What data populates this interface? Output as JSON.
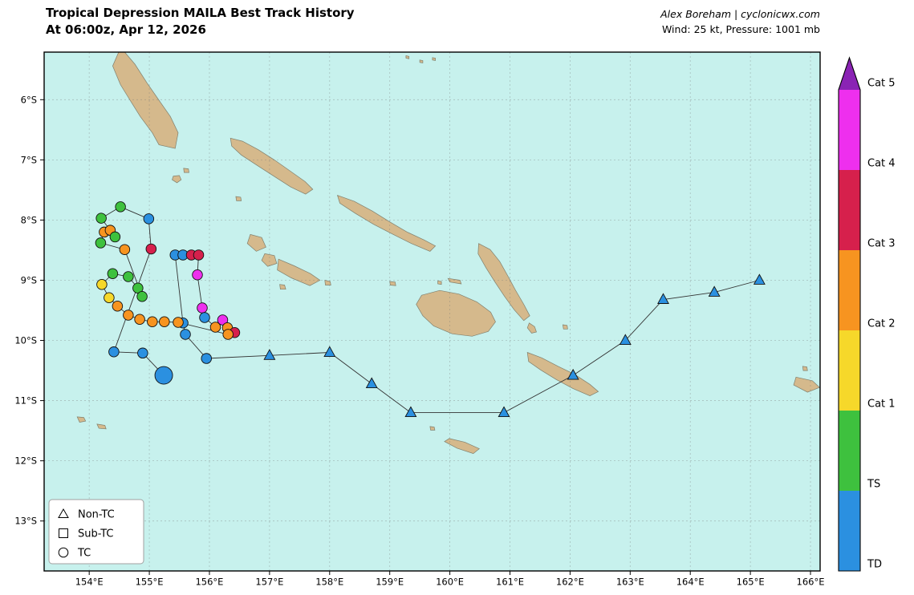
{
  "header": {
    "title_line1": "Tropical Depression MAILA Best Track History",
    "title_line2": "At 06:00z, Apr 12, 2026",
    "credit_line1": "Alex Boreham | cyclonicwx.com",
    "credit_line2": "Wind: 25 kt, Pressure: 1001 mb"
  },
  "colors": {
    "ocean": "#c7f1ed",
    "land": "#d5b98c",
    "land_edge": "#80806e",
    "track_line": "#333333",
    "grid": "#777777",
    "frame": "#000000"
  },
  "chart_data": {
    "type": "scatter",
    "title": "Tropical Depression MAILA Best Track History",
    "subtitle": "At 06:00z, Apr 12, 2026",
    "x_axis": {
      "range": [
        153.25,
        166.16
      ],
      "tick_values": [
        154,
        155,
        156,
        157,
        158,
        159,
        160,
        161,
        162,
        163,
        164,
        165,
        166
      ],
      "tick_labels": [
        "154°E",
        "155°E",
        "156°E",
        "157°E",
        "158°E",
        "159°E",
        "160°E",
        "161°E",
        "162°E",
        "163°E",
        "164°E",
        "165°E",
        "166°E"
      ]
    },
    "y_axis": {
      "range": [
        5.21,
        13.83
      ],
      "tick_values": [
        6,
        7,
        8,
        9,
        10,
        11,
        12,
        13
      ],
      "tick_labels": [
        "6°S",
        "7°S",
        "8°S",
        "9°S",
        "10°S",
        "11°S",
        "12°S",
        "13°S"
      ]
    },
    "category_colors": {
      "TD": "#2b90e0",
      "TS": "#3ec13e",
      "C1": "#f6d82a",
      "C2": "#f79420",
      "C3": "#d6204c",
      "C4": "#ee2fee",
      "C5": "#8a23b4"
    },
    "colorbar": {
      "labels": [
        "TD",
        "TS",
        "Cat 1",
        "Cat 2",
        "Cat 3",
        "Cat 4",
        "Cat 5"
      ],
      "segment_cats": [
        "TD",
        "TS",
        "C1",
        "C2",
        "C3",
        "C4"
      ],
      "arrow_cat": "C5"
    },
    "legend": [
      {
        "marker": "triangle",
        "label": "Non-TC"
      },
      {
        "marker": "square",
        "label": "Sub-TC"
      },
      {
        "marker": "circle",
        "label": "TC"
      }
    ],
    "current": {
      "wind_kt": 25,
      "pressure_mb": 1001
    },
    "track": [
      {
        "lon": 165.15,
        "lat": 9.0,
        "cat": "TD",
        "marker": "triangle"
      },
      {
        "lon": 164.4,
        "lat": 9.2,
        "cat": "TD",
        "marker": "triangle"
      },
      {
        "lon": 163.55,
        "lat": 9.32,
        "cat": "TD",
        "marker": "triangle"
      },
      {
        "lon": 162.92,
        "lat": 10.0,
        "cat": "TD",
        "marker": "triangle"
      },
      {
        "lon": 162.05,
        "lat": 10.58,
        "cat": "TD",
        "marker": "triangle"
      },
      {
        "lon": 160.9,
        "lat": 11.2,
        "cat": "TD",
        "marker": "triangle"
      },
      {
        "lon": 159.35,
        "lat": 11.2,
        "cat": "TD",
        "marker": "triangle"
      },
      {
        "lon": 158.7,
        "lat": 10.72,
        "cat": "TD",
        "marker": "triangle"
      },
      {
        "lon": 158.0,
        "lat": 10.2,
        "cat": "TD",
        "marker": "triangle"
      },
      {
        "lon": 157.0,
        "lat": 10.25,
        "cat": "TD",
        "marker": "triangle"
      },
      {
        "lon": 155.95,
        "lat": 10.3,
        "cat": "TD",
        "marker": "circle"
      },
      {
        "lon": 155.6,
        "lat": 9.9,
        "cat": "TD",
        "marker": "circle"
      },
      {
        "lon": 155.56,
        "lat": 9.71,
        "cat": "TD",
        "marker": "circle"
      },
      {
        "lon": 155.43,
        "lat": 8.58,
        "cat": "TD",
        "marker": "circle"
      },
      {
        "lon": 155.56,
        "lat": 8.58,
        "cat": "TD",
        "marker": "circle"
      },
      {
        "lon": 155.7,
        "lat": 8.58,
        "cat": "C3",
        "marker": "circle"
      },
      {
        "lon": 155.82,
        "lat": 8.58,
        "cat": "C3",
        "marker": "circle"
      },
      {
        "lon": 155.8,
        "lat": 8.91,
        "cat": "C4",
        "marker": "circle"
      },
      {
        "lon": 155.88,
        "lat": 9.46,
        "cat": "C4",
        "marker": "circle"
      },
      {
        "lon": 155.92,
        "lat": 9.62,
        "cat": "TD",
        "marker": "circle"
      },
      {
        "lon": 156.1,
        "lat": 9.78,
        "cat": "C2",
        "marker": "circle"
      },
      {
        "lon": 156.22,
        "lat": 9.66,
        "cat": "C4",
        "marker": "circle"
      },
      {
        "lon": 156.3,
        "lat": 9.79,
        "cat": "C2",
        "marker": "circle"
      },
      {
        "lon": 156.42,
        "lat": 9.87,
        "cat": "C3",
        "marker": "circle"
      },
      {
        "lon": 156.31,
        "lat": 9.9,
        "cat": "C2",
        "marker": "circle"
      },
      {
        "lon": 155.48,
        "lat": 9.7,
        "cat": "C2",
        "marker": "circle"
      },
      {
        "lon": 155.25,
        "lat": 9.69,
        "cat": "C2",
        "marker": "circle"
      },
      {
        "lon": 155.05,
        "lat": 9.69,
        "cat": "C2",
        "marker": "circle"
      },
      {
        "lon": 154.84,
        "lat": 9.65,
        "cat": "C2",
        "marker": "circle"
      },
      {
        "lon": 154.65,
        "lat": 9.58,
        "cat": "C2",
        "marker": "circle"
      },
      {
        "lon": 154.47,
        "lat": 9.43,
        "cat": "C2",
        "marker": "circle"
      },
      {
        "lon": 154.33,
        "lat": 9.29,
        "cat": "C1",
        "marker": "circle"
      },
      {
        "lon": 154.21,
        "lat": 9.07,
        "cat": "C1",
        "marker": "circle"
      },
      {
        "lon": 154.39,
        "lat": 8.89,
        "cat": "TS",
        "marker": "circle"
      },
      {
        "lon": 154.65,
        "lat": 8.94,
        "cat": "TS",
        "marker": "circle"
      },
      {
        "lon": 154.81,
        "lat": 9.13,
        "cat": "TS",
        "marker": "circle"
      },
      {
        "lon": 154.88,
        "lat": 9.27,
        "cat": "TS",
        "marker": "circle"
      },
      {
        "lon": 154.59,
        "lat": 8.49,
        "cat": "C2",
        "marker": "circle"
      },
      {
        "lon": 154.19,
        "lat": 8.38,
        "cat": "TS",
        "marker": "circle"
      },
      {
        "lon": 154.25,
        "lat": 8.2,
        "cat": "C2",
        "marker": "circle"
      },
      {
        "lon": 154.35,
        "lat": 8.17,
        "cat": "C2",
        "marker": "circle"
      },
      {
        "lon": 154.43,
        "lat": 8.28,
        "cat": "TS",
        "marker": "circle"
      },
      {
        "lon": 154.2,
        "lat": 7.97,
        "cat": "TS",
        "marker": "circle"
      },
      {
        "lon": 154.52,
        "lat": 7.78,
        "cat": "TS",
        "marker": "circle"
      },
      {
        "lon": 154.99,
        "lat": 7.98,
        "cat": "TD",
        "marker": "circle"
      },
      {
        "lon": 155.03,
        "lat": 8.48,
        "cat": "C3",
        "marker": "circle"
      },
      {
        "lon": 154.41,
        "lat": 10.19,
        "cat": "TD",
        "marker": "circle"
      },
      {
        "lon": 154.89,
        "lat": 10.21,
        "cat": "TD",
        "marker": "circle"
      },
      {
        "lon": 155.24,
        "lat": 10.58,
        "cat": "TD",
        "marker": "circle",
        "current": true
      }
    ],
    "land_polygons": [
      [
        [
          154.59,
          5.21
        ],
        [
          154.76,
          5.41
        ],
        [
          154.96,
          5.72
        ],
        [
          155.16,
          6.01
        ],
        [
          155.35,
          6.28
        ],
        [
          155.48,
          6.55
        ],
        [
          155.43,
          6.81
        ],
        [
          155.16,
          6.75
        ],
        [
          155.05,
          6.55
        ],
        [
          154.85,
          6.28
        ],
        [
          154.68,
          6.01
        ],
        [
          154.52,
          5.75
        ],
        [
          154.39,
          5.44
        ],
        [
          154.49,
          5.21
        ]
      ],
      [
        [
          155.4,
          7.27
        ],
        [
          155.5,
          7.26
        ],
        [
          155.53,
          7.33
        ],
        [
          155.46,
          7.38
        ],
        [
          155.38,
          7.33
        ]
      ],
      [
        [
          155.57,
          7.14
        ],
        [
          155.65,
          7.15
        ],
        [
          155.66,
          7.21
        ],
        [
          155.58,
          7.21
        ]
      ],
      [
        [
          156.35,
          6.64
        ],
        [
          156.55,
          6.69
        ],
        [
          156.81,
          6.83
        ],
        [
          157.08,
          7.0
        ],
        [
          157.35,
          7.19
        ],
        [
          157.59,
          7.36
        ],
        [
          157.72,
          7.49
        ],
        [
          157.6,
          7.57
        ],
        [
          157.35,
          7.45
        ],
        [
          157.07,
          7.27
        ],
        [
          156.79,
          7.09
        ],
        [
          156.53,
          6.92
        ],
        [
          156.37,
          6.77
        ]
      ],
      [
        [
          156.44,
          7.61
        ],
        [
          156.52,
          7.62
        ],
        [
          156.53,
          7.68
        ],
        [
          156.45,
          7.68
        ]
      ],
      [
        [
          158.13,
          7.59
        ],
        [
          158.41,
          7.69
        ],
        [
          158.71,
          7.85
        ],
        [
          159.0,
          8.03
        ],
        [
          159.29,
          8.2
        ],
        [
          159.57,
          8.33
        ],
        [
          159.76,
          8.43
        ],
        [
          159.67,
          8.52
        ],
        [
          159.36,
          8.39
        ],
        [
          159.04,
          8.23
        ],
        [
          158.73,
          8.07
        ],
        [
          158.43,
          7.89
        ],
        [
          158.17,
          7.72
        ]
      ],
      [
        [
          160.48,
          8.39
        ],
        [
          160.67,
          8.49
        ],
        [
          160.83,
          8.69
        ],
        [
          160.96,
          8.92
        ],
        [
          161.09,
          9.16
        ],
        [
          161.23,
          9.4
        ],
        [
          161.33,
          9.59
        ],
        [
          161.23,
          9.67
        ],
        [
          161.07,
          9.49
        ],
        [
          160.91,
          9.27
        ],
        [
          160.75,
          9.03
        ],
        [
          160.6,
          8.79
        ],
        [
          160.47,
          8.56
        ]
      ],
      [
        [
          161.32,
          9.71
        ],
        [
          161.41,
          9.77
        ],
        [
          161.44,
          9.86
        ],
        [
          161.36,
          9.88
        ],
        [
          161.29,
          9.79
        ]
      ],
      [
        [
          156.68,
          8.24
        ],
        [
          156.87,
          8.29
        ],
        [
          156.94,
          8.45
        ],
        [
          156.78,
          8.52
        ],
        [
          156.63,
          8.39
        ]
      ],
      [
        [
          156.92,
          8.56
        ],
        [
          157.08,
          8.59
        ],
        [
          157.12,
          8.72
        ],
        [
          156.97,
          8.77
        ],
        [
          156.87,
          8.67
        ]
      ],
      [
        [
          157.15,
          8.65
        ],
        [
          157.41,
          8.76
        ],
        [
          157.68,
          8.89
        ],
        [
          157.84,
          9.0
        ],
        [
          157.67,
          9.09
        ],
        [
          157.36,
          8.96
        ],
        [
          157.13,
          8.83
        ]
      ],
      [
        [
          157.17,
          9.07
        ],
        [
          157.25,
          9.08
        ],
        [
          157.27,
          9.15
        ],
        [
          157.18,
          9.15
        ]
      ],
      [
        [
          157.92,
          9.0
        ],
        [
          158.01,
          9.02
        ],
        [
          158.02,
          9.08
        ],
        [
          157.93,
          9.08
        ]
      ],
      [
        [
          159.0,
          9.02
        ],
        [
          159.09,
          9.03
        ],
        [
          159.1,
          9.09
        ],
        [
          159.01,
          9.08
        ]
      ],
      [
        [
          159.97,
          8.97
        ],
        [
          160.17,
          9.0
        ],
        [
          160.19,
          9.06
        ],
        [
          160.0,
          9.03
        ]
      ],
      [
        [
          159.8,
          9.01
        ],
        [
          159.86,
          9.02
        ],
        [
          159.86,
          9.07
        ],
        [
          159.8,
          9.06
        ]
      ],
      [
        [
          159.53,
          9.25
        ],
        [
          159.83,
          9.17
        ],
        [
          160.15,
          9.23
        ],
        [
          160.45,
          9.36
        ],
        [
          160.68,
          9.53
        ],
        [
          160.76,
          9.69
        ],
        [
          160.64,
          9.85
        ],
        [
          160.37,
          9.93
        ],
        [
          160.04,
          9.89
        ],
        [
          159.73,
          9.76
        ],
        [
          159.55,
          9.59
        ],
        [
          159.44,
          9.4
        ]
      ],
      [
        [
          161.29,
          10.2
        ],
        [
          161.53,
          10.29
        ],
        [
          161.8,
          10.43
        ],
        [
          162.07,
          10.56
        ],
        [
          162.33,
          10.73
        ],
        [
          162.47,
          10.85
        ],
        [
          162.33,
          10.92
        ],
        [
          162.05,
          10.8
        ],
        [
          161.77,
          10.65
        ],
        [
          161.51,
          10.49
        ],
        [
          161.31,
          10.35
        ]
      ],
      [
        [
          161.88,
          9.74
        ],
        [
          161.95,
          9.75
        ],
        [
          161.96,
          9.81
        ],
        [
          161.89,
          9.81
        ]
      ],
      [
        [
          159.99,
          11.63
        ],
        [
          160.25,
          11.69
        ],
        [
          160.49,
          11.8
        ],
        [
          160.39,
          11.88
        ],
        [
          160.12,
          11.79
        ],
        [
          159.91,
          11.68
        ]
      ],
      [
        [
          159.67,
          11.43
        ],
        [
          159.74,
          11.44
        ],
        [
          159.75,
          11.49
        ],
        [
          159.68,
          11.49
        ]
      ],
      [
        [
          153.8,
          11.27
        ],
        [
          153.91,
          11.28
        ],
        [
          153.94,
          11.34
        ],
        [
          153.84,
          11.36
        ]
      ],
      [
        [
          154.13,
          11.39
        ],
        [
          154.26,
          11.41
        ],
        [
          154.28,
          11.47
        ],
        [
          154.16,
          11.46
        ]
      ],
      [
        [
          159.27,
          5.27
        ],
        [
          159.32,
          5.28
        ],
        [
          159.32,
          5.32
        ],
        [
          159.27,
          5.31
        ]
      ],
      [
        [
          159.5,
          5.34
        ],
        [
          159.55,
          5.35
        ],
        [
          159.55,
          5.39
        ],
        [
          159.5,
          5.38
        ]
      ],
      [
        [
          159.71,
          5.3
        ],
        [
          159.76,
          5.31
        ],
        [
          159.76,
          5.35
        ],
        [
          159.71,
          5.34
        ]
      ],
      [
        [
          165.76,
          10.61
        ],
        [
          166.03,
          10.67
        ],
        [
          166.15,
          10.78
        ],
        [
          165.95,
          10.86
        ],
        [
          165.72,
          10.74
        ]
      ],
      [
        [
          165.87,
          10.43
        ],
        [
          165.94,
          10.44
        ],
        [
          165.95,
          10.5
        ],
        [
          165.88,
          10.5
        ]
      ]
    ]
  }
}
